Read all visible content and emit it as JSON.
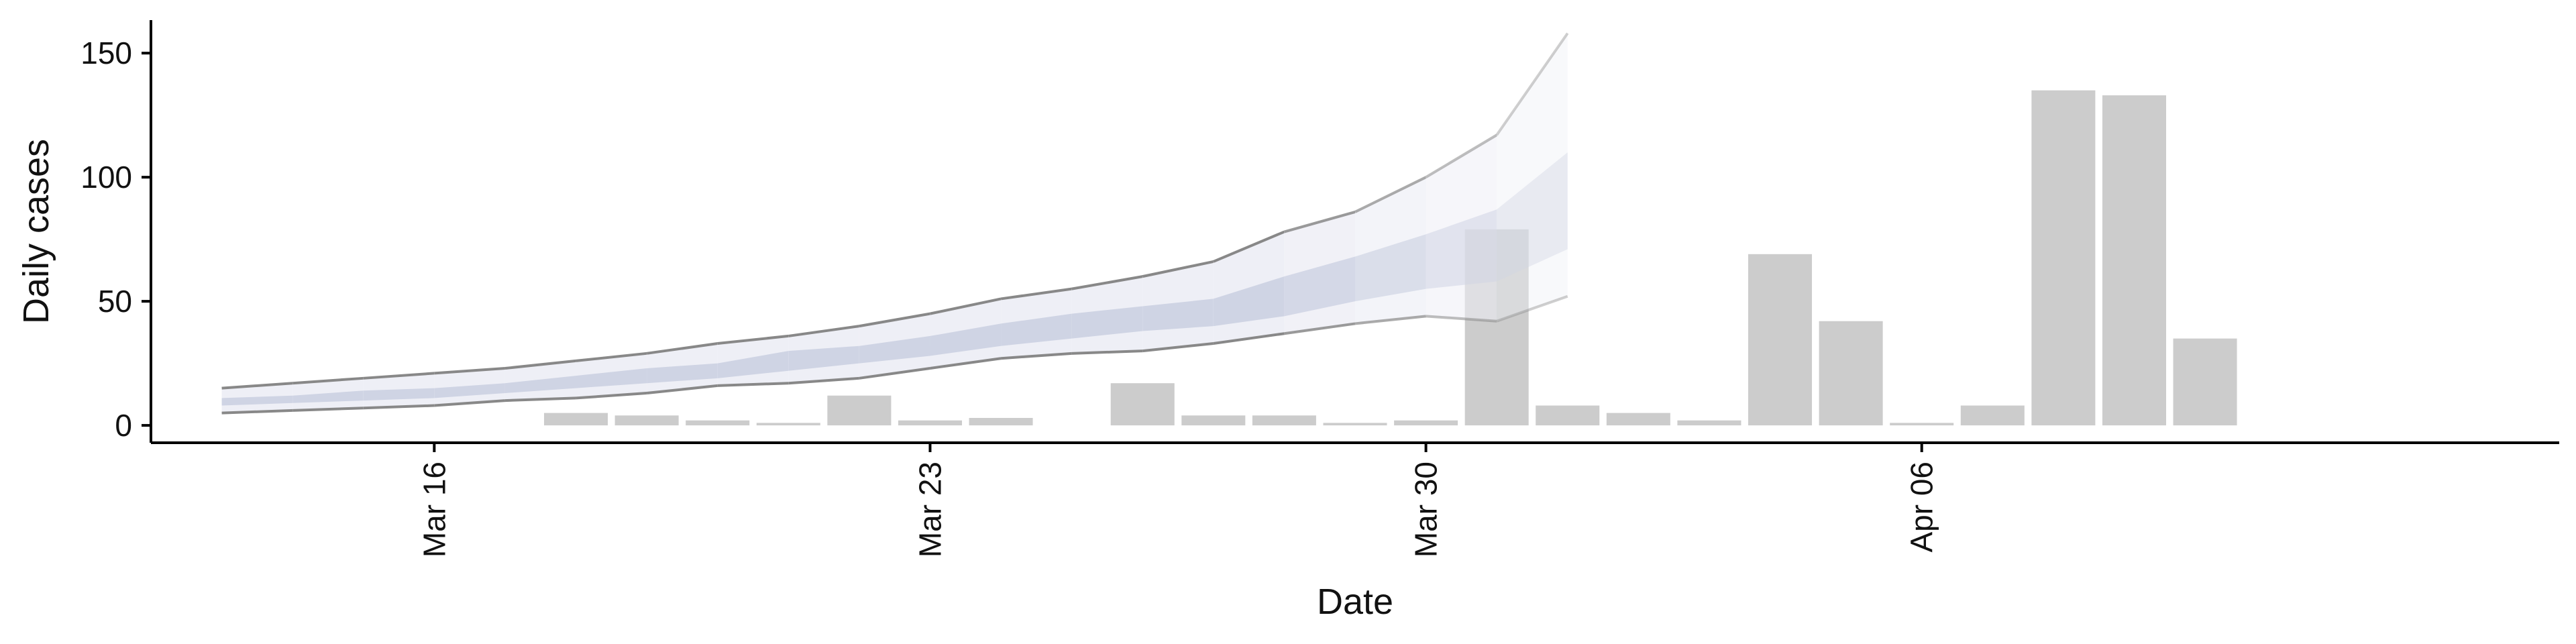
{
  "chart_data": {
    "type": "bar",
    "xlabel": "Date",
    "ylabel": "Daily cases",
    "x_axis_type": "date",
    "xlim": [
      "2020-03-12",
      "2020-04-15"
    ],
    "ylim": [
      -7,
      166
    ],
    "grid": false,
    "legend": "none",
    "x_ticks": [
      {
        "date": "2020-03-16",
        "label": "Mar 16"
      },
      {
        "date": "2020-03-23",
        "label": "Mar 23"
      },
      {
        "date": "2020-03-30",
        "label": "Mar 30"
      },
      {
        "date": "2020-04-06",
        "label": "Apr 06"
      }
    ],
    "y_ticks": [
      0,
      50,
      100,
      150
    ],
    "bars": {
      "color": "#cccccc",
      "dates": [
        "2020-03-18",
        "2020-03-19",
        "2020-03-20",
        "2020-03-21",
        "2020-03-22",
        "2020-03-23",
        "2020-03-24",
        "2020-03-26",
        "2020-03-27",
        "2020-03-28",
        "2020-03-29",
        "2020-03-30",
        "2020-03-31",
        "2020-04-01",
        "2020-04-02",
        "2020-04-03",
        "2020-04-04",
        "2020-04-05",
        "2020-04-06",
        "2020-04-07",
        "2020-04-08",
        "2020-04-09",
        "2020-04-10"
      ],
      "values": [
        5,
        4,
        2,
        1,
        12,
        2,
        3,
        17,
        4,
        4,
        1,
        2,
        79,
        8,
        5,
        2,
        69,
        42,
        1,
        8,
        135,
        133,
        35
      ]
    },
    "forecast": {
      "dates": [
        "2020-03-13",
        "2020-03-14",
        "2020-03-15",
        "2020-03-16",
        "2020-03-17",
        "2020-03-18",
        "2020-03-19",
        "2020-03-20",
        "2020-03-21",
        "2020-03-22",
        "2020-03-23",
        "2020-03-24",
        "2020-03-25",
        "2020-03-26",
        "2020-03-27",
        "2020-03-28",
        "2020-03-29",
        "2020-03-30",
        "2020-03-31",
        "2020-04-01"
      ],
      "band_90_lower": [
        5,
        6,
        7,
        8,
        10,
        11,
        13,
        16,
        17,
        19,
        23,
        27,
        29,
        30,
        33,
        37,
        41,
        44,
        42,
        52
      ],
      "band_90_upper": [
        15,
        17,
        19,
        21,
        23,
        26,
        29,
        33,
        36,
        40,
        45,
        51,
        55,
        60,
        66,
        78,
        86,
        100,
        117,
        158
      ],
      "band_50_lower": [
        8,
        9,
        10,
        11,
        13,
        15,
        17,
        19,
        22,
        25,
        28,
        32,
        35,
        38,
        40,
        44,
        50,
        55,
        58,
        71
      ],
      "band_50_upper": [
        11,
        12,
        14,
        15,
        17,
        20,
        23,
        25,
        30,
        32,
        36,
        41,
        45,
        48,
        51,
        60,
        68,
        77,
        87,
        110
      ],
      "outer_color": "#eeeff6",
      "inner_color": "#cfd4e4",
      "line_color": "#888888"
    }
  }
}
